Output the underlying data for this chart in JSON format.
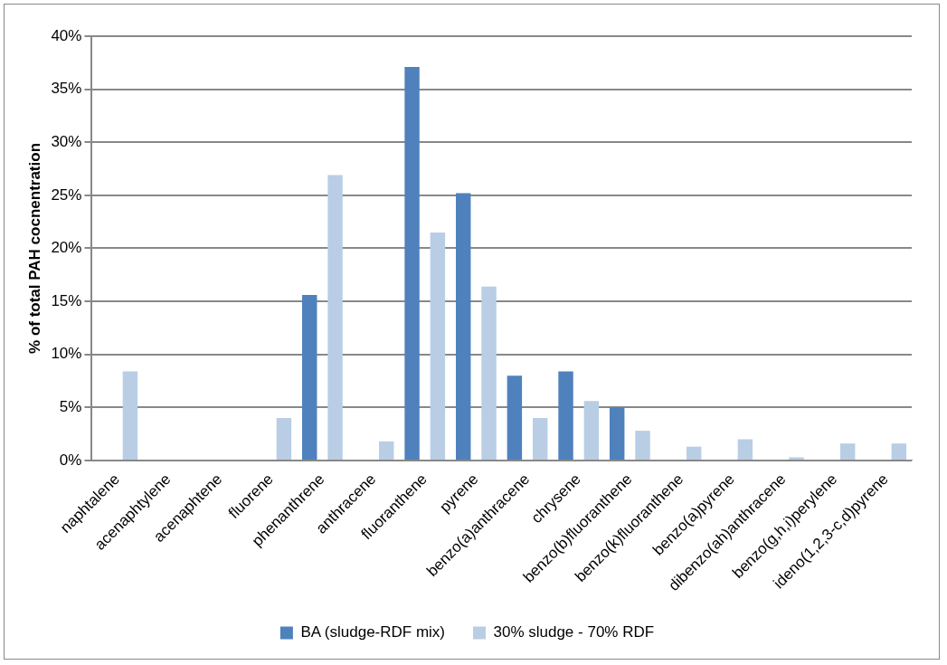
{
  "chart_data": {
    "type": "bar",
    "ylabel": "% of total PAH cocnentration",
    "categories": [
      "naphtalene",
      "acenaphtylene",
      "acenaphtene",
      "fluorene",
      "phenanthrene",
      "anthracene",
      "fluoranthene",
      "pyrene",
      "benzo(a)anthracene",
      "chrysene",
      "benzo(b)fluoranthene",
      "benzo(k)fluoranthene",
      "benzo(a)pyrene",
      "dibenzo(ah)anthracene",
      "benzo(g,h,i)perylene",
      "ideno(1,2,3-c,d)pyrene"
    ],
    "series": [
      {
        "name": "BA (sludge-RDF mix)",
        "color": "#4f81bd",
        "values": [
          0,
          0,
          0,
          0,
          15.6,
          0,
          37.1,
          25.2,
          8.0,
          8.4,
          5.0,
          0,
          0,
          0,
          0,
          0
        ]
      },
      {
        "name": "30% sludge - 70% RDF",
        "color": "#b9cde5",
        "values": [
          8.4,
          0,
          0,
          4.0,
          26.9,
          1.8,
          21.5,
          16.4,
          4.0,
          5.6,
          2.8,
          1.3,
          2.0,
          0.3,
          1.6,
          1.6
        ]
      }
    ],
    "ylim": [
      0,
      40
    ],
    "yticks": [
      {
        "value": 0,
        "label": "0%"
      },
      {
        "value": 5,
        "label": "5%"
      },
      {
        "value": 10,
        "label": "10%"
      },
      {
        "value": 15,
        "label": "15%"
      },
      {
        "value": 20,
        "label": "20%"
      },
      {
        "value": 25,
        "label": "25%"
      },
      {
        "value": 30,
        "label": "30%"
      },
      {
        "value": 35,
        "label": "35%"
      },
      {
        "value": 40,
        "label": "40%"
      }
    ],
    "grid": "y",
    "legend": "bottom"
  }
}
